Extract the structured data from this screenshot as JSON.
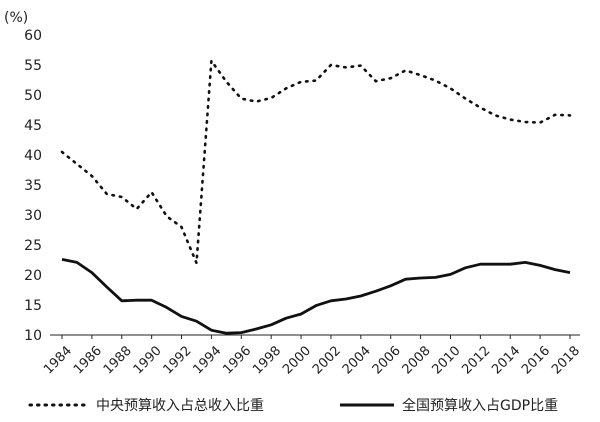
{
  "chart_data": {
    "type": "line",
    "unit_label": "(%)",
    "ylim": [
      10,
      60
    ],
    "y_ticks": [
      10,
      15,
      20,
      25,
      30,
      35,
      40,
      45,
      50,
      55,
      60
    ],
    "xlim": [
      1984,
      2018
    ],
    "x_ticks": [
      1984,
      1986,
      1988,
      1990,
      1992,
      1994,
      1996,
      1998,
      2000,
      2002,
      2004,
      2006,
      2008,
      2010,
      2012,
      2014,
      2016,
      2018
    ],
    "grid": false,
    "legend_position": "bottom",
    "x": [
      1984,
      1985,
      1986,
      1987,
      1988,
      1989,
      1990,
      1991,
      1992,
      1993,
      1994,
      1995,
      1996,
      1997,
      1998,
      1999,
      2000,
      2001,
      2002,
      2003,
      2004,
      2005,
      2006,
      2007,
      2008,
      2009,
      2010,
      2011,
      2012,
      2013,
      2014,
      2015,
      2016,
      2017,
      2018
    ],
    "series": [
      {
        "name": "中央预算收入占总收入比重",
        "style": "dotted",
        "color": "#111111",
        "values": [
          40.5,
          38.5,
          36.5,
          33.5,
          33.0,
          31.0,
          33.8,
          29.8,
          28.0,
          22.0,
          55.7,
          52.2,
          49.4,
          48.9,
          49.5,
          51.1,
          52.2,
          52.4,
          55.0,
          54.6,
          54.9,
          52.3,
          52.8,
          54.1,
          53.3,
          52.4,
          51.1,
          49.4,
          47.9,
          46.6,
          45.9,
          45.5,
          45.4,
          46.7,
          46.6
        ]
      },
      {
        "name": "全国预算收入占GDP比重",
        "style": "solid",
        "color": "#111111",
        "values": [
          22.6,
          22.1,
          20.4,
          18.0,
          15.7,
          15.8,
          15.8,
          14.6,
          13.1,
          12.3,
          10.8,
          10.3,
          10.4,
          11.0,
          11.7,
          12.8,
          13.5,
          14.9,
          15.7,
          16.0,
          16.5,
          17.3,
          18.2,
          19.3,
          19.5,
          19.6,
          20.1,
          21.2,
          21.8,
          21.8,
          21.8,
          22.1,
          21.6,
          20.9,
          20.4
        ]
      }
    ]
  }
}
